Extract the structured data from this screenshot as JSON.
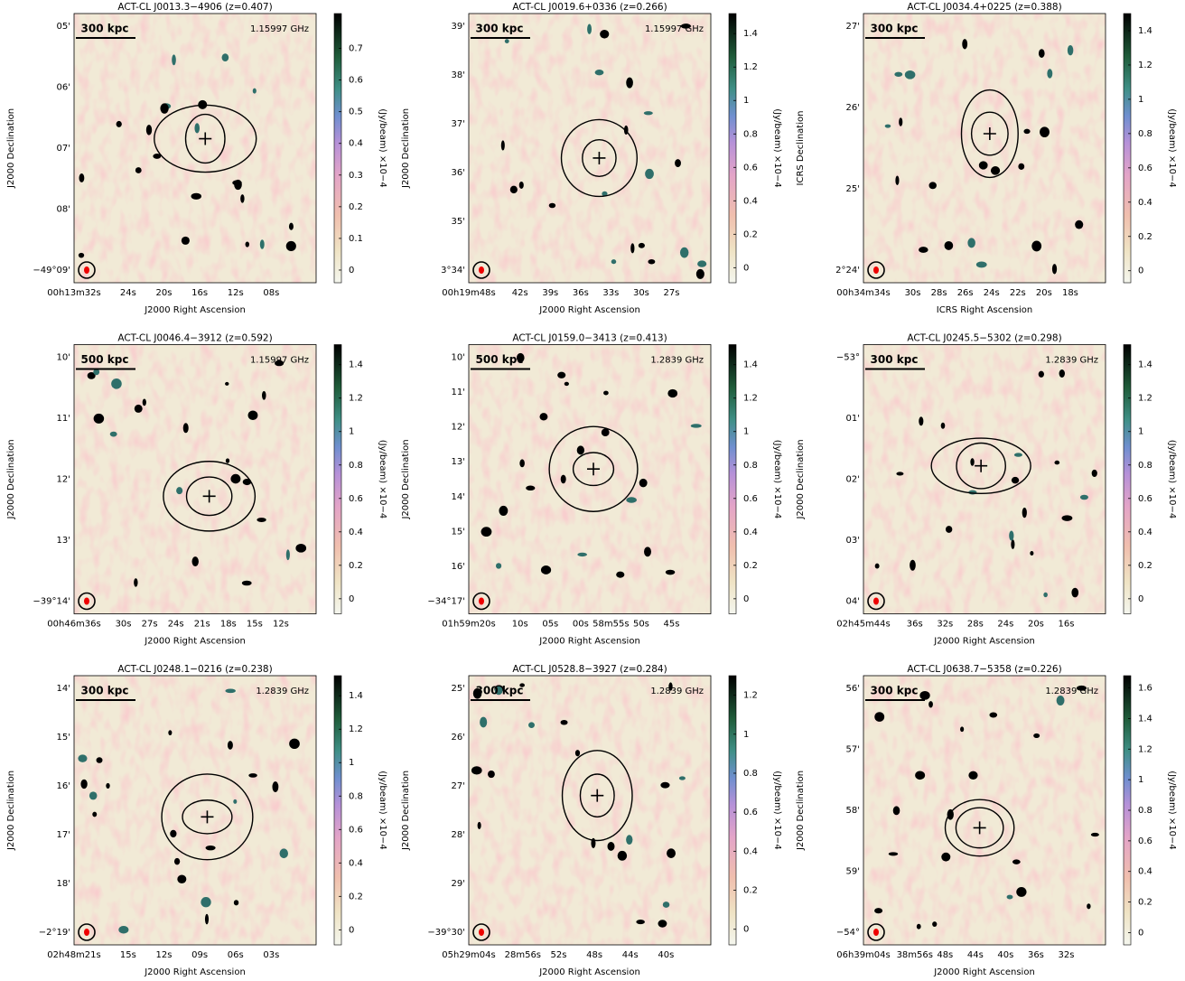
{
  "colorbar_label": "(Jy/beam) ×10−4",
  "panels": [
    {
      "title": "ACT-CL J0013.3−4906 (z=0.407)",
      "frequency": "1.15997 GHz",
      "scale_bar": "300 kpc",
      "xlabel": "J2000 Right Ascension",
      "ylabel": "J2000 Declination",
      "yticks": [
        "05'",
        "06'",
        "07'",
        "08'",
        "−49°09'"
      ],
      "xticks": [
        "00h13m32s",
        "24s",
        "20s",
        "16s",
        "12s",
        "08s"
      ],
      "cbar_lim": [
        -0.04,
        0.81
      ],
      "cbar_ticks": [
        0,
        0.1,
        0.2,
        0.3,
        0.4,
        0.5,
        0.6,
        0.7
      ]
    },
    {
      "title": "ACT-CL J0019.6+0336 (z=0.266)",
      "frequency": "1.15997 GHz",
      "scale_bar": "300 kpc",
      "xlabel": "J2000 Right Ascension",
      "ylabel": "J2000 Declination",
      "yticks": [
        "39'",
        "38'",
        "37'",
        "36'",
        "35'",
        "3°34'"
      ],
      "xticks": [
        "00h19m48s",
        "42s",
        "39s",
        "36s",
        "33s",
        "30s",
        "27s"
      ],
      "cbar_lim": [
        -0.09,
        1.52
      ],
      "cbar_ticks": [
        0,
        0.2,
        0.4,
        0.6,
        0.8,
        1,
        1.2,
        1.4
      ]
    },
    {
      "title": "ACT-CL J0034.4+0225 (z=0.388)",
      "scale_bar": "300 kpc",
      "xlabel": "ICRS Right Ascension",
      "ylabel": "ICRS Declination",
      "yticks": [
        "27'",
        "26'",
        "25'",
        "2°24'"
      ],
      "xticks": [
        "00h34m34s",
        "30s",
        "28s",
        "26s",
        "24s",
        "22s",
        "20s",
        "18s"
      ],
      "cbar_lim": [
        -0.07,
        1.5
      ],
      "cbar_ticks": [
        0,
        0.2,
        0.4,
        0.6,
        0.8,
        1,
        1.2,
        1.4
      ]
    },
    {
      "title": "ACT-CL J0046.4−3912 (z=0.592)",
      "frequency": "1.15997 GHz",
      "scale_bar": "500 kpc",
      "xlabel": "J2000 Right Ascension",
      "ylabel": "J2000 Declination",
      "yticks": [
        "10'",
        "11'",
        "12'",
        "13'",
        "−39°14'"
      ],
      "xticks": [
        "00h46m36s",
        "30s",
        "27s",
        "24s",
        "21s",
        "18s",
        "15s",
        "12s"
      ],
      "cbar_lim": [
        -0.09,
        1.52
      ],
      "cbar_ticks": [
        0,
        0.2,
        0.4,
        0.6,
        0.8,
        1,
        1.2,
        1.4
      ]
    },
    {
      "title": "ACT-CL J0159.0−3413 (z=0.413)",
      "frequency": "1.2839 GHz",
      "scale_bar": "500 kpc",
      "xlabel": "J2000 Right Ascension",
      "ylabel": "J2000 Declination",
      "yticks": [
        "10'",
        "11'",
        "12'",
        "13'",
        "14'",
        "15'",
        "16'",
        "−34°17'"
      ],
      "xticks": [
        "01h59m20s",
        "10s",
        "05s",
        "00s",
        "58m55s",
        "50s",
        "45s"
      ],
      "cbar_lim": [
        -0.09,
        1.52
      ],
      "cbar_ticks": [
        0,
        0.2,
        0.4,
        0.6,
        0.8,
        1,
        1.2,
        1.4
      ]
    },
    {
      "title": "ACT-CL J0245.5−5302 (z=0.298)",
      "frequency": "1.2839 GHz",
      "scale_bar": "300 kpc",
      "xlabel": "J2000 Right Ascension",
      "ylabel": "J2000 Declination",
      "yticks": [
        "−53°",
        "01'",
        "02'",
        "03'",
        "04'"
      ],
      "xticks": [
        "02h45m44s",
        "36s",
        "32s",
        "28s",
        "24s",
        "20s",
        "16s"
      ],
      "cbar_lim": [
        -0.09,
        1.52
      ],
      "cbar_ticks": [
        0,
        0.2,
        0.4,
        0.6,
        0.8,
        1,
        1.2,
        1.4
      ]
    },
    {
      "title": "ACT-CL J0248.1−0216 (z=0.238)",
      "frequency": "1.2839 GHz",
      "scale_bar": "300 kpc",
      "xlabel": "J2000 Right Ascension",
      "ylabel": "J2000 Declination",
      "yticks": [
        "14'",
        "15'",
        "16'",
        "17'",
        "18'",
        "−2°19'"
      ],
      "xticks": [
        "02h48m21s",
        "15s",
        "12s",
        "09s",
        "06s",
        "03s"
      ],
      "cbar_lim": [
        -0.09,
        1.52
      ],
      "cbar_ticks": [
        0,
        0.2,
        0.4,
        0.6,
        0.8,
        1,
        1.2,
        1.4
      ]
    },
    {
      "title": "ACT-CL J0528.8−3927 (z=0.284)",
      "frequency": "1.2839 GHz",
      "scale_bar": "300 kpc",
      "xlabel": "J2000 Right Ascension",
      "ylabel": "J2000 Declination",
      "yticks": [
        "25'",
        "26'",
        "27'",
        "28'",
        "29'",
        "−39°30'"
      ],
      "xticks": [
        "05h29m04s",
        "28m56s",
        "52s",
        "48s",
        "44s",
        "40s"
      ],
      "cbar_lim": [
        -0.08,
        1.3
      ],
      "cbar_ticks": [
        0,
        0.2,
        0.4,
        0.6,
        0.8,
        1,
        1.2
      ]
    },
    {
      "title": "ACT-CL J0638.7−5358 (z=0.226)",
      "frequency": "1.2839 GHz",
      "scale_bar": "300 kpc",
      "xlabel": "J2000 Right Ascension",
      "ylabel": "J2000 Declination",
      "yticks": [
        "56'",
        "57'",
        "58'",
        "59'",
        "−54°"
      ],
      "xticks": [
        "06h39m04s",
        "38m56s",
        "48s",
        "44s",
        "40s",
        "36s",
        "32s"
      ],
      "cbar_lim": [
        -0.08,
        1.68
      ],
      "cbar_ticks": [
        0,
        0.2,
        0.4,
        0.6,
        0.8,
        1,
        1.2,
        1.4,
        1.6
      ]
    }
  ]
}
